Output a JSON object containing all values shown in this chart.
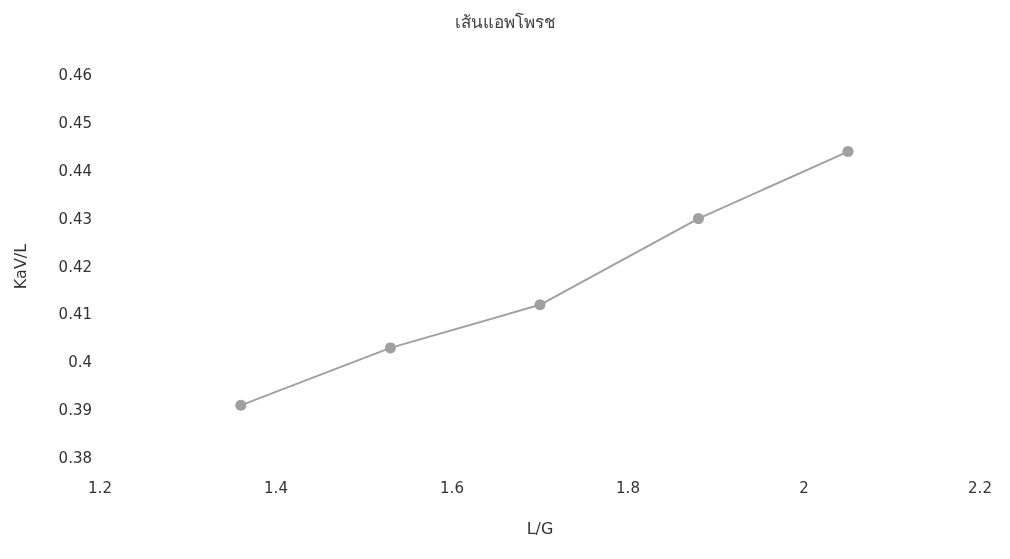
{
  "chart_data": {
    "type": "line",
    "title": "เส้นแอพโพรช",
    "xlabel": "L/G",
    "ylabel": "KaV/L",
    "x": [
      1.36,
      1.53,
      1.7,
      1.88,
      2.05
    ],
    "series": [
      {
        "color": "#a0a0a0",
        "values": [
          0.391,
          0.403,
          0.412,
          0.43,
          0.444
        ]
      }
    ],
    "xlim": [
      1.2,
      2.2
    ],
    "xticks": [
      1.2,
      1.4,
      1.6,
      1.8,
      2,
      2.2
    ],
    "ylim": [
      0.38,
      0.46
    ],
    "yticks": [
      0.38,
      0.39,
      0.4,
      0.41,
      0.42,
      0.43,
      0.44,
      0.45,
      0.46
    ],
    "grid": false,
    "marker": "circle",
    "line_style": "solid"
  }
}
